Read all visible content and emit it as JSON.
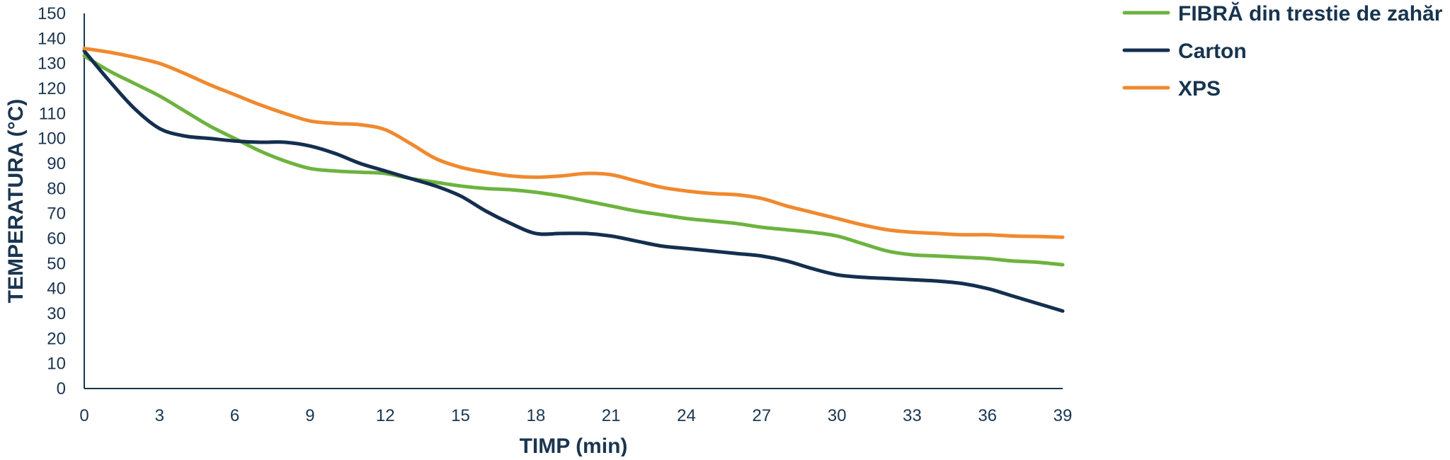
{
  "chart_data": {
    "type": "line",
    "xlabel": "TIMP (min)",
    "ylabel": "TEMPERATURA (°C)",
    "xlim": [
      0,
      39
    ],
    "ylim": [
      0,
      150
    ],
    "xticks": [
      "0",
      "3",
      "6",
      "9",
      "12",
      "15",
      "18",
      "21",
      "24",
      "27",
      "30",
      "33",
      "36",
      "39"
    ],
    "yticks": [
      "0",
      "10",
      "20",
      "30",
      "40",
      "50",
      "60",
      "70",
      "80",
      "90",
      "100",
      "110",
      "120",
      "130",
      "140",
      "150"
    ],
    "grid": false,
    "legend_position": "top-right",
    "x": [
      0,
      1,
      2,
      3,
      4,
      5,
      6,
      7,
      8,
      9,
      10,
      11,
      12,
      13,
      14,
      15,
      16,
      17,
      18,
      19,
      20,
      21,
      22,
      23,
      24,
      25,
      26,
      27,
      28,
      29,
      30,
      31,
      32,
      33,
      34,
      35,
      36,
      37,
      38,
      39
    ],
    "series": [
      {
        "name": "FIBRĂ din trestie de zahăr",
        "color": "#6db33f",
        "values": [
          133,
          127,
          122,
          117,
          111,
          105,
          100,
          95,
          91,
          88,
          87,
          86.5,
          86,
          84,
          82.5,
          81,
          80,
          79.5,
          78.5,
          77,
          75,
          73,
          71,
          69.5,
          68,
          67,
          66,
          64.5,
          63.5,
          62.5,
          61,
          58,
          55,
          53.5,
          53,
          52.5,
          52,
          51,
          50.5,
          49.5
        ]
      },
      {
        "name": "Carton",
        "color": "#142f4f",
        "values": [
          135,
          123,
          112,
          104,
          101,
          100,
          99,
          98.5,
          98.5,
          97,
          94,
          90,
          87,
          84,
          81,
          77,
          71,
          66,
          62,
          62,
          62,
          61,
          59,
          57,
          56,
          55,
          54,
          53,
          51,
          48,
          45.5,
          44.5,
          44,
          43.5,
          43,
          42,
          40,
          37,
          34,
          31
        ]
      },
      {
        "name": "XPS",
        "color": "#f0892e",
        "values": [
          136,
          134.5,
          132.5,
          130,
          126,
          121.5,
          117.5,
          113.5,
          110,
          107,
          106,
          105.5,
          103.5,
          98,
          92,
          88.5,
          86.5,
          85,
          84.5,
          85,
          86,
          85.5,
          83,
          80.5,
          79,
          78,
          77.5,
          76,
          73,
          70.5,
          68,
          65.5,
          63.5,
          62.5,
          62,
          61.5,
          61.5,
          61,
          60.8,
          60.5
        ]
      }
    ]
  }
}
